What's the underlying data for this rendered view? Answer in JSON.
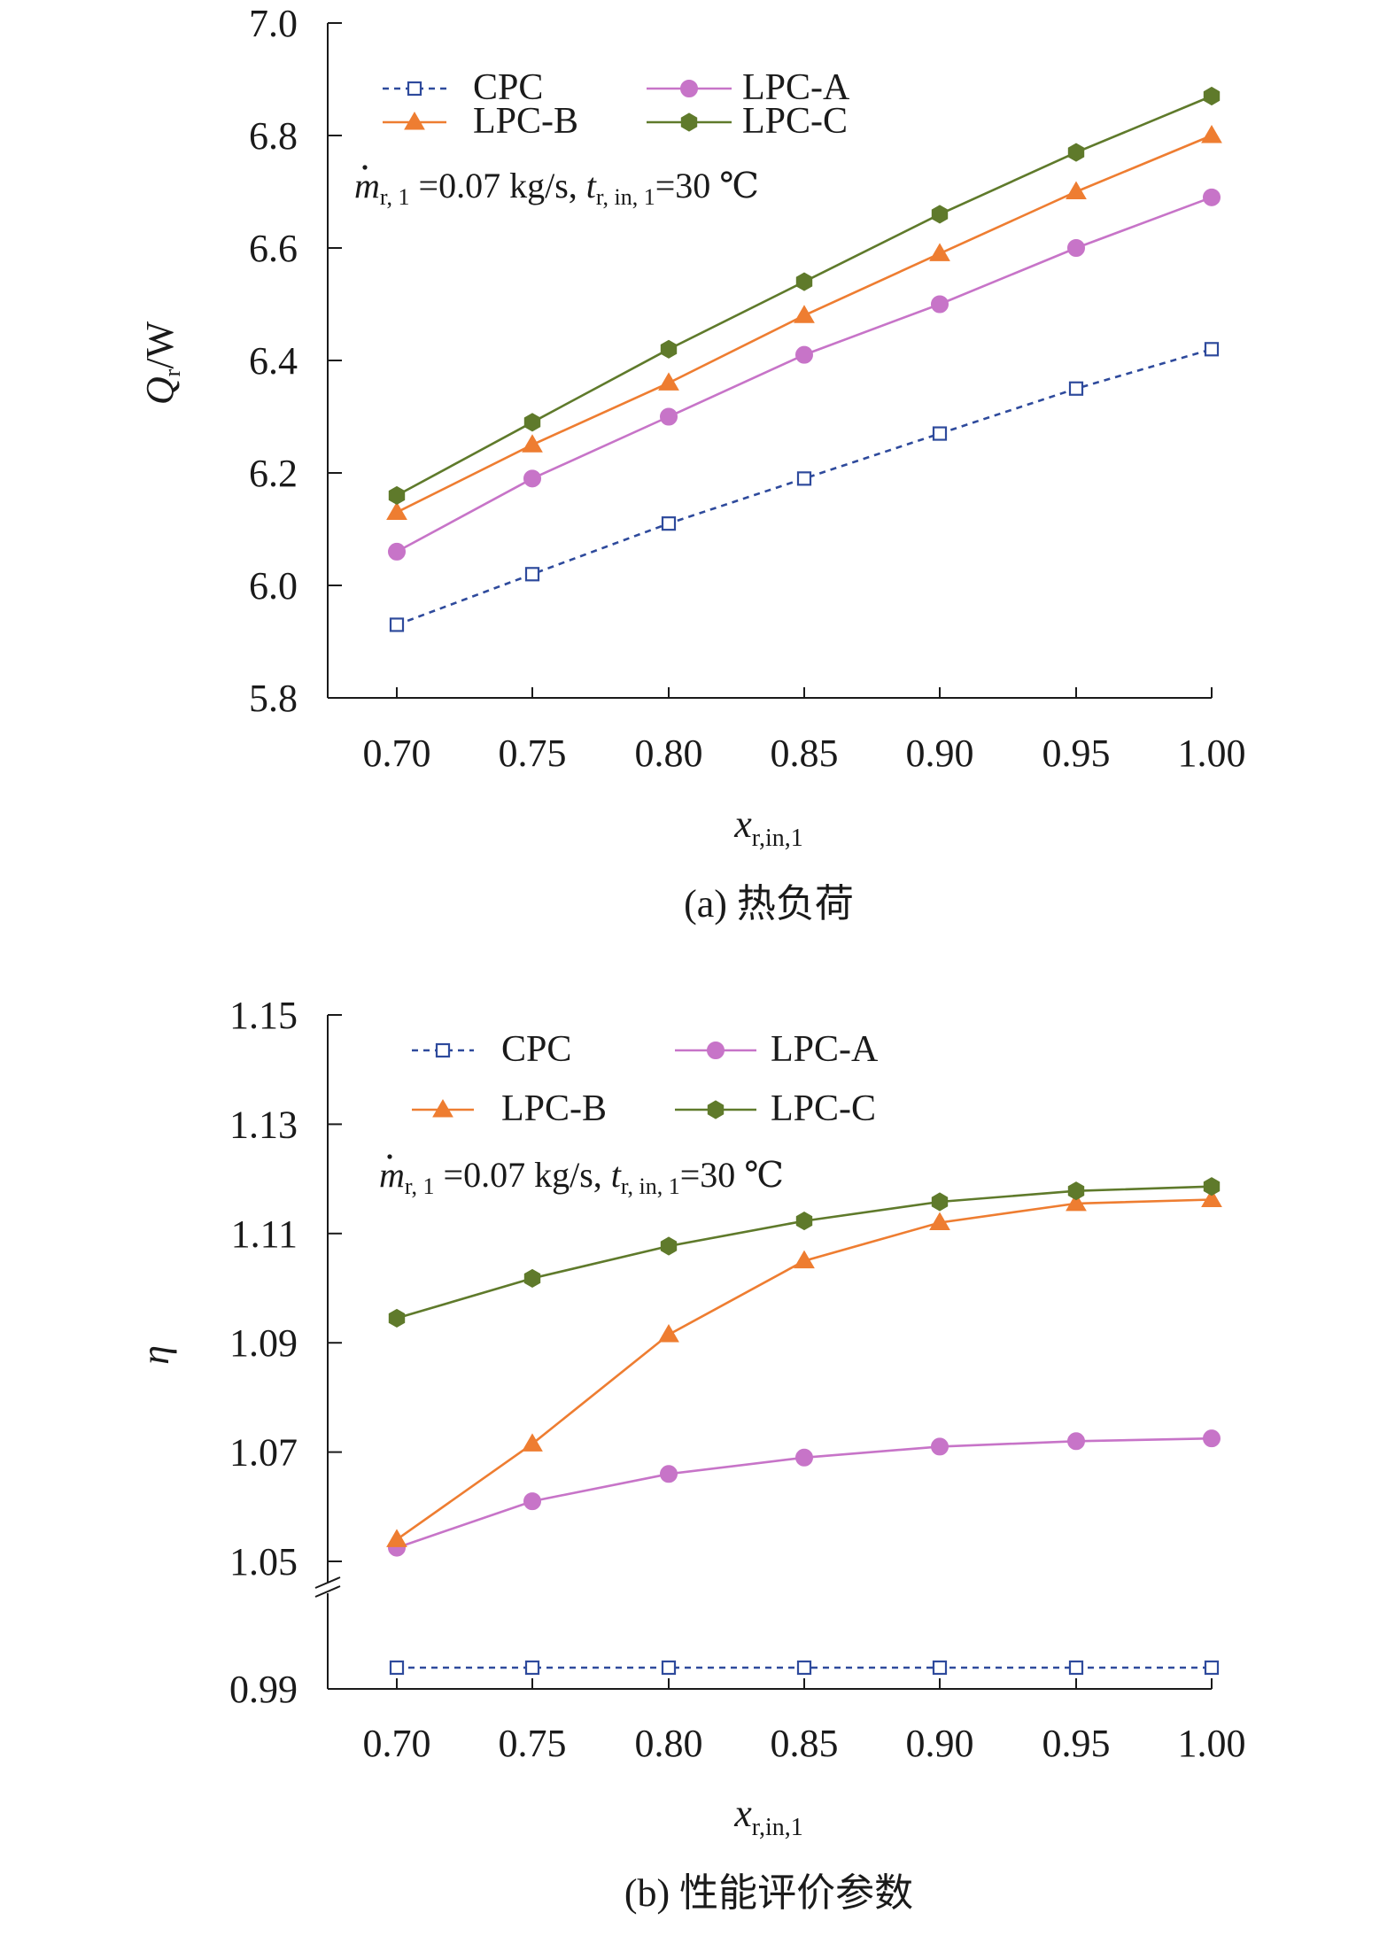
{
  "chart_data": [
    {
      "type": "line",
      "caption": "(a) 热负荷",
      "ylabel_main": "Q",
      "ylabel_sub": "r",
      "ylabel_unit": "/W",
      "xlabel_main": "x",
      "xlabel_sub": "r,in,1",
      "condition": {
        "m": "m",
        "m_sub": "r, 1",
        "m_text": "=0.07 kg/s, ",
        "t": "t",
        "t_sub": "r, in, 1",
        "t_text": "=30 ℃"
      },
      "x": [
        0.7,
        0.75,
        0.8,
        0.85,
        0.9,
        0.95,
        1.0
      ],
      "x_tick_labels": [
        "0.70",
        "0.75",
        "0.80",
        "0.85",
        "0.90",
        "0.95",
        "1.00"
      ],
      "ylim": [
        5.8,
        7.0
      ],
      "y_ticks": [
        5.8,
        6.0,
        6.2,
        6.4,
        6.6,
        6.8,
        7.0
      ],
      "y_tick_labels": [
        "5.8",
        "6.0",
        "6.2",
        "6.4",
        "6.6",
        "6.8",
        "7.0"
      ],
      "series": [
        {
          "name": "CPC",
          "color": "#2e4a9c",
          "marker": "square-open",
          "dashed": true,
          "values": [
            5.93,
            6.02,
            6.11,
            6.19,
            6.27,
            6.35,
            6.42
          ]
        },
        {
          "name": "LPC-A",
          "color": "#c774c8",
          "marker": "circle",
          "dashed": false,
          "values": [
            6.06,
            6.19,
            6.3,
            6.41,
            6.5,
            6.6,
            6.69
          ]
        },
        {
          "name": "LPC-B",
          "color": "#ee7d31",
          "marker": "triangle",
          "dashed": false,
          "values": [
            6.13,
            6.25,
            6.36,
            6.48,
            6.59,
            6.7,
            6.8
          ]
        },
        {
          "name": "LPC-C",
          "color": "#5f7a2b",
          "marker": "hexagon",
          "dashed": false,
          "values": [
            6.16,
            6.29,
            6.42,
            6.54,
            6.66,
            6.77,
            6.87
          ]
        }
      ]
    },
    {
      "type": "line",
      "caption": "(b) 性能评价参数",
      "ylabel_main": "η",
      "xlabel_main": "x",
      "xlabel_sub": "r,in,1",
      "condition": {
        "m": "m",
        "m_sub": "r, 1",
        "m_text": "=0.07 kg/s, ",
        "t": "t",
        "t_sub": "r, in, 1",
        "t_text": "=30 ℃"
      },
      "axis_break": "between 0.99 and 1.05",
      "x": [
        0.7,
        0.75,
        0.8,
        0.85,
        0.9,
        0.95,
        1.0
      ],
      "x_tick_labels": [
        "0.70",
        "0.75",
        "0.80",
        "0.85",
        "0.90",
        "0.95",
        "1.00"
      ],
      "ylim": [
        0.99,
        1.15
      ],
      "y_ticks": [
        0.99,
        1.05,
        1.07,
        1.09,
        1.11,
        1.13,
        1.15
      ],
      "y_tick_labels": [
        "0.99",
        "1.05",
        "1.07",
        "1.09",
        "1.11",
        "1.13",
        "1.15"
      ],
      "series": [
        {
          "name": "CPC",
          "color": "#2e4a9c",
          "marker": "square-open",
          "dashed": true,
          "values": [
            1.0,
            1.0,
            1.0,
            1.0,
            1.0,
            1.0,
            1.0
          ]
        },
        {
          "name": "LPC-A",
          "color": "#c774c8",
          "marker": "circle",
          "dashed": false,
          "values": [
            1.0525,
            1.061,
            1.066,
            1.069,
            1.071,
            1.072,
            1.0725
          ]
        },
        {
          "name": "LPC-B",
          "color": "#ee7d31",
          "marker": "triangle",
          "dashed": false,
          "values": [
            1.054,
            1.0715,
            1.0915,
            1.105,
            1.112,
            1.1155,
            1.1162
          ]
        },
        {
          "name": "LPC-C",
          "color": "#5f7a2b",
          "marker": "hexagon",
          "dashed": false,
          "values": [
            1.0945,
            1.1018,
            1.1077,
            1.1123,
            1.1158,
            1.1178,
            1.1186
          ]
        }
      ]
    }
  ]
}
